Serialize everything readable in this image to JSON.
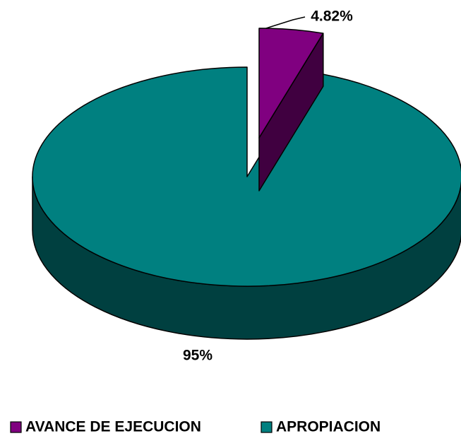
{
  "chart_data": {
    "type": "pie3d",
    "categories": [
      "AVANCE DE EJECUCION",
      "APROPIACION"
    ],
    "values": [
      4.82,
      95
    ],
    "value_labels": [
      "4.82%",
      "95%"
    ],
    "colors": [
      "#800080",
      "#008080"
    ],
    "side_colors": [
      "#400040",
      "#004040"
    ],
    "exploded": [
      true,
      false
    ],
    "legend": "bottom"
  }
}
